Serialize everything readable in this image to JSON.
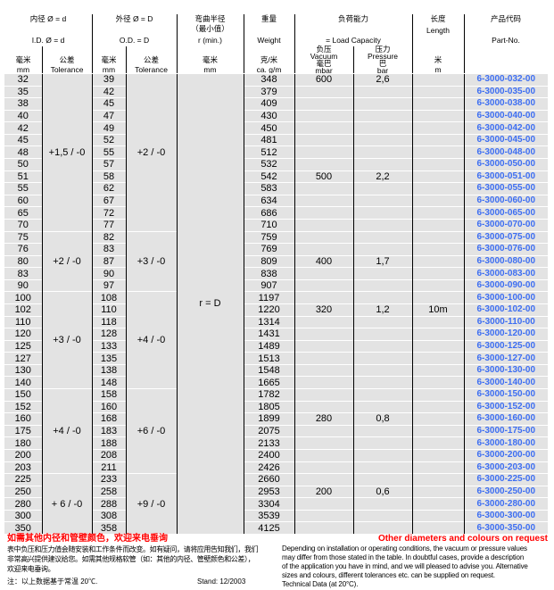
{
  "header": {
    "id_cn": "内径 Ø = d",
    "id_en": "I.D. Ø = d",
    "od_cn": "外径 Ø = D",
    "od_en": "O.D. = D",
    "bend_cn": "弯曲半径",
    "bend_cn2": "（最小值）",
    "bend_en": "r (min.)",
    "weight_cn": "重量",
    "weight_en": "Weight",
    "load_cn": "负荷能力",
    "load_en": "= Load Capacity",
    "length_cn": "长度",
    "length_en": "Length",
    "part_cn": "产品代码",
    "part_en": "Part-No.",
    "sub": {
      "id_mm_cn": "毫米",
      "id_mm": "mm",
      "id_tol_cn": "公差",
      "id_tol": "Tolerance",
      "od_mm_cn": "毫米",
      "od_mm": "mm",
      "od_tol_cn": "公差",
      "od_tol": "Tolerance",
      "bend_mm_cn": "毫米",
      "bend_mm": "mm",
      "weight_cn": "克/米",
      "weight_unit": "ca. g/m",
      "vac_cn": "负压",
      "vac_en": "Vacuum",
      "vac_unit_cn": "毫巴",
      "vac_unit": "mbar",
      "pre_cn": "压力",
      "pre_en": "Pressure",
      "pre_unit_cn": "巴",
      "pre_unit": "bar",
      "len_cn": "米",
      "len_unit": "m"
    }
  },
  "bend_value": "r = D",
  "length_value": "10m",
  "id_tolerances": [
    {
      "label": "+1,5 / -0",
      "rows": 13
    },
    {
      "label": "+2 / -0",
      "rows": 5
    },
    {
      "label": "+3 / -0",
      "rows": 8
    },
    {
      "label": "+4 / -0",
      "rows": 7
    },
    {
      "label": "+ 6 / -0",
      "rows": 5
    }
  ],
  "od_tolerances": [
    {
      "label": "+2 / -0",
      "rows": 13
    },
    {
      "label": "+3 / -0",
      "rows": 5
    },
    {
      "label": "+4 / -0",
      "rows": 8
    },
    {
      "label": "+6 / -0",
      "rows": 7
    },
    {
      "label": "+9 / -0",
      "rows": 5
    }
  ],
  "rows": [
    [
      "32",
      "39",
      "348",
      "600",
      "2,6",
      "6-3000-032-00"
    ],
    [
      "35",
      "42",
      "379",
      "",
      "",
      "6-3000-035-00"
    ],
    [
      "38",
      "45",
      "409",
      "",
      "",
      "6-3000-038-00"
    ],
    [
      "40",
      "47",
      "430",
      "",
      "",
      "6-3000-040-00"
    ],
    [
      "42",
      "49",
      "450",
      "",
      "",
      "6-3000-042-00"
    ],
    [
      "45",
      "52",
      "481",
      "",
      "",
      "6-3000-045-00"
    ],
    [
      "48",
      "55",
      "512",
      "",
      "",
      "6-3000-048-00"
    ],
    [
      "50",
      "57",
      "532",
      "",
      "",
      "6-3000-050-00"
    ],
    [
      "51",
      "58",
      "542",
      "500",
      "2,2",
      "6-3000-051-00"
    ],
    [
      "55",
      "62",
      "583",
      "",
      "",
      "6-3000-055-00"
    ],
    [
      "60",
      "67",
      "634",
      "",
      "",
      "6-3000-060-00"
    ],
    [
      "65",
      "72",
      "686",
      "",
      "",
      "6-3000-065-00"
    ],
    [
      "70",
      "77",
      "710",
      "",
      "",
      "6-3000-070-00"
    ],
    [
      "75",
      "82",
      "759",
      "",
      "",
      "6-3000-075-00"
    ],
    [
      "76",
      "83",
      "769",
      "",
      "",
      "6-3000-076-00"
    ],
    [
      "80",
      "87",
      "809",
      "400",
      "1,7",
      "6-3000-080-00"
    ],
    [
      "83",
      "90",
      "838",
      "",
      "",
      "6-3000-083-00"
    ],
    [
      "90",
      "97",
      "907",
      "",
      "",
      "6-3000-090-00"
    ],
    [
      "100",
      "108",
      "1197",
      "",
      "",
      "6-3000-100-00"
    ],
    [
      "102",
      "110",
      "1220",
      "320",
      "1,2",
      "6-3000-102-00"
    ],
    [
      "110",
      "118",
      "1314",
      "",
      "",
      "6-3000-110-00"
    ],
    [
      "120",
      "128",
      "1431",
      "",
      "",
      "6-3000-120-00"
    ],
    [
      "125",
      "133",
      "1489",
      "",
      "",
      "6-3000-125-00"
    ],
    [
      "127",
      "135",
      "1513",
      "",
      "",
      "6-3000-127-00"
    ],
    [
      "130",
      "138",
      "1548",
      "",
      "",
      "6-3000-130-00"
    ],
    [
      "140",
      "148",
      "1665",
      "",
      "",
      "6-3000-140-00"
    ],
    [
      "150",
      "158",
      "1782",
      "",
      "",
      "6-3000-150-00"
    ],
    [
      "152",
      "160",
      "1805",
      "",
      "",
      "6-3000-152-00"
    ],
    [
      "160",
      "168",
      "1899",
      "280",
      "0,8",
      "6-3000-160-00"
    ],
    [
      "175",
      "183",
      "2075",
      "",
      "",
      "6-3000-175-00"
    ],
    [
      "180",
      "188",
      "2133",
      "",
      "",
      "6-3000-180-00"
    ],
    [
      "200",
      "208",
      "2400",
      "",
      "",
      "6-3000-200-00"
    ],
    [
      "203",
      "211",
      "2426",
      "",
      "",
      "6-3000-203-00"
    ],
    [
      "225",
      "233",
      "2660",
      "",
      "",
      "6-3000-225-00"
    ],
    [
      "250",
      "258",
      "2953",
      "200",
      "0,6",
      "6-3000-250-00"
    ],
    [
      "280",
      "288",
      "3304",
      "",
      "",
      "6-3000-280-00"
    ],
    [
      "300",
      "308",
      "3539",
      "",
      "",
      "6-3000-300-00"
    ],
    [
      "350",
      "358",
      "4125",
      "",
      "",
      "6-3000-350-00"
    ]
  ],
  "length_row_index": 19,
  "footer": {
    "red_cn": "如需其他内径和管壁颜色，欢迎来电垂询",
    "red_en": "Other diameters and colours on request",
    "cn_lines": [
      "表中负压和压力值会随安装和工作条件而改变。如有疑问，请将应用告知我们，我们",
      "非常高兴提供建议给您。如需其他规格软管（如：其他的内径、管壁颜色和公差），",
      "欢迎来电垂询。"
    ],
    "cn_note": "注：以上数据基于常温 20℃.",
    "stand": "Stand: 12/2003",
    "en_lines": [
      "Depending on installation or operating conditions, the vacuum or pressure values",
      "may differ from those stated in the table. In doubtful cases, provide a description",
      "of the application you have in mind, and we will pleased to advise you. Alternative",
      "sizes and colours, different tolerances etc. can be supplied on request.",
      "Technical Data (at 20°C)."
    ]
  },
  "colors": {
    "part_no": "#3d6ef2",
    "red": "#ff0000",
    "cell": "#e3e3e3"
  }
}
